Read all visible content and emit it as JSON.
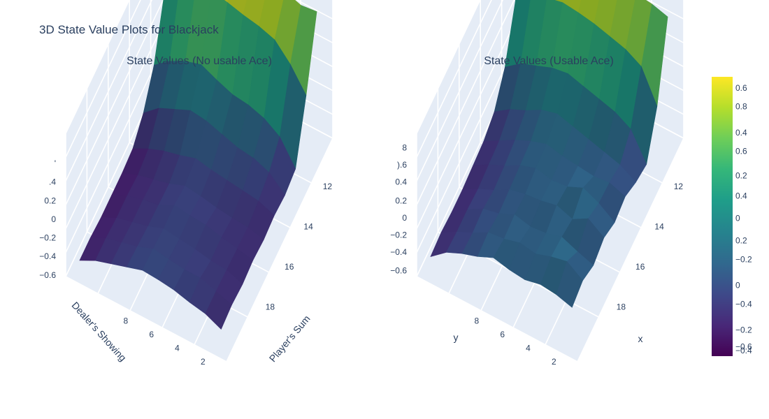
{
  "figure": {
    "title": "3D State Value Plots for Blackjack"
  },
  "chart_data": [
    {
      "type": "surface3d",
      "title": "State Values (No usable Ace)",
      "xlabel": "Player's Sum",
      "ylabel": "Dealer's Showing",
      "zlabel": "",
      "x_ticks": [
        "12",
        "14",
        "16",
        "18",
        ""
      ],
      "y_ticks": [
        "2",
        "4",
        "6",
        "8"
      ],
      "z_ticks": [
        "−0.6",
        "−0.4",
        "−0.2",
        "0",
        "0.2",
        ".4",
        "'"
      ],
      "x": [
        12,
        13,
        14,
        15,
        16,
        17,
        18,
        19,
        20,
        21
      ],
      "y": [
        1,
        2,
        3,
        4,
        5,
        6,
        7,
        8,
        9,
        10
      ],
      "zlim": [
        -0.8,
        0.6
      ],
      "z": [
        [
          -0.62,
          -0.6,
          -0.62,
          -0.6,
          -0.62,
          -0.6,
          -0.62,
          -0.58,
          -0.08,
          0.52
        ],
        [
          -0.55,
          -0.55,
          -0.56,
          -0.57,
          -0.58,
          -0.54,
          -0.48,
          -0.35,
          0.14,
          0.5
        ],
        [
          -0.52,
          -0.5,
          -0.55,
          -0.54,
          -0.57,
          -0.52,
          -0.42,
          -0.25,
          0.3,
          0.55
        ],
        [
          -0.48,
          -0.5,
          -0.52,
          -0.5,
          -0.55,
          -0.5,
          -0.4,
          -0.2,
          0.35,
          0.6
        ],
        [
          -0.46,
          -0.48,
          -0.5,
          -0.49,
          -0.52,
          -0.48,
          -0.35,
          -0.18,
          0.38,
          0.58
        ],
        [
          -0.45,
          -0.46,
          -0.48,
          -0.47,
          -0.5,
          -0.45,
          -0.3,
          -0.12,
          0.42,
          0.6
        ],
        [
          -0.5,
          -0.52,
          -0.54,
          -0.55,
          -0.56,
          -0.5,
          -0.28,
          -0.05,
          0.45,
          0.62
        ],
        [
          -0.55,
          -0.56,
          -0.58,
          -0.58,
          -0.6,
          -0.54,
          -0.35,
          -0.1,
          0.42,
          0.6
        ],
        [
          -0.6,
          -0.6,
          -0.62,
          -0.62,
          -0.64,
          -0.6,
          -0.42,
          -0.18,
          0.38,
          0.58
        ],
        [
          -0.68,
          -0.68,
          -0.7,
          -0.7,
          -0.7,
          -0.68,
          -0.55,
          -0.3,
          0.2,
          0.5
        ]
      ]
    },
    {
      "type": "surface3d",
      "title": "State Values (Usable Ace)",
      "xlabel": "x",
      "ylabel": "y",
      "zlabel": "",
      "x_ticks": [
        "12",
        "14",
        "16",
        "18",
        ""
      ],
      "y_ticks": [
        "2",
        "4",
        "6",
        "8"
      ],
      "z_ticks": [
        "−0.6",
        "−0.4",
        "−0.2",
        "0",
        "0.2",
        "0.4",
        ").6",
        "8"
      ],
      "x": [
        12,
        13,
        14,
        15,
        16,
        17,
        18,
        19,
        20,
        21
      ],
      "y": [
        1,
        2,
        3,
        4,
        5,
        6,
        7,
        8,
        9,
        10
      ],
      "zlim": [
        -0.8,
        0.8
      ],
      "z": [
        [
          -0.35,
          -0.3,
          -0.38,
          -0.32,
          -0.4,
          -0.36,
          -0.45,
          -0.5,
          -0.1,
          0.65
        ],
        [
          -0.3,
          -0.18,
          -0.32,
          -0.2,
          -0.28,
          -0.3,
          -0.35,
          -0.2,
          0.25,
          0.7
        ],
        [
          -0.28,
          -0.22,
          -0.25,
          -0.3,
          -0.2,
          -0.32,
          -0.3,
          -0.1,
          0.35,
          0.72
        ],
        [
          -0.32,
          -0.28,
          -0.3,
          -0.24,
          -0.28,
          -0.3,
          -0.25,
          -0.05,
          0.4,
          0.75
        ],
        [
          -0.3,
          -0.25,
          -0.32,
          -0.28,
          -0.3,
          -0.28,
          -0.2,
          0.0,
          0.45,
          0.76
        ],
        [
          -0.26,
          -0.3,
          -0.28,
          -0.3,
          -0.26,
          -0.24,
          -0.15,
          0.05,
          0.48,
          0.78
        ],
        [
          -0.34,
          -0.32,
          -0.36,
          -0.34,
          -0.32,
          -0.3,
          -0.2,
          0.02,
          0.5,
          0.8
        ],
        [
          -0.4,
          -0.42,
          -0.4,
          -0.44,
          -0.42,
          -0.38,
          -0.3,
          -0.05,
          0.46,
          0.78
        ],
        [
          -0.48,
          -0.5,
          -0.5,
          -0.52,
          -0.5,
          -0.48,
          -0.38,
          -0.12,
          0.4,
          0.75
        ],
        [
          -0.62,
          -0.6,
          -0.62,
          -0.62,
          -0.6,
          -0.58,
          -0.5,
          -0.25,
          0.25,
          0.68
        ]
      ]
    }
  ],
  "colorbar": {
    "colorscale": "Viridis",
    "range": [
      -0.8,
      0.7
    ],
    "ticks_a": [
      {
        "label": "0.6",
        "value": 0.64
      },
      {
        "label": "0.4",
        "value": 0.4
      },
      {
        "label": "0.2",
        "value": 0.17
      },
      {
        "label": "0",
        "value": -0.06
      },
      {
        "label": "−0.2",
        "value": -0.28
      },
      {
        "label": "−0.4",
        "value": -0.52
      },
      {
        "label": "−0.6",
        "value": -0.75
      }
    ],
    "ticks_b": [
      {
        "label": "0.8",
        "value": 0.54
      },
      {
        "label": "0.6",
        "value": 0.3
      },
      {
        "label": "0.4",
        "value": 0.06
      },
      {
        "label": "0.2",
        "value": -0.18
      },
      {
        "label": "0",
        "value": -0.42
      },
      {
        "label": "−0.2",
        "value": -0.66
      },
      {
        "label": "−0.4",
        "value": -0.77
      }
    ]
  }
}
